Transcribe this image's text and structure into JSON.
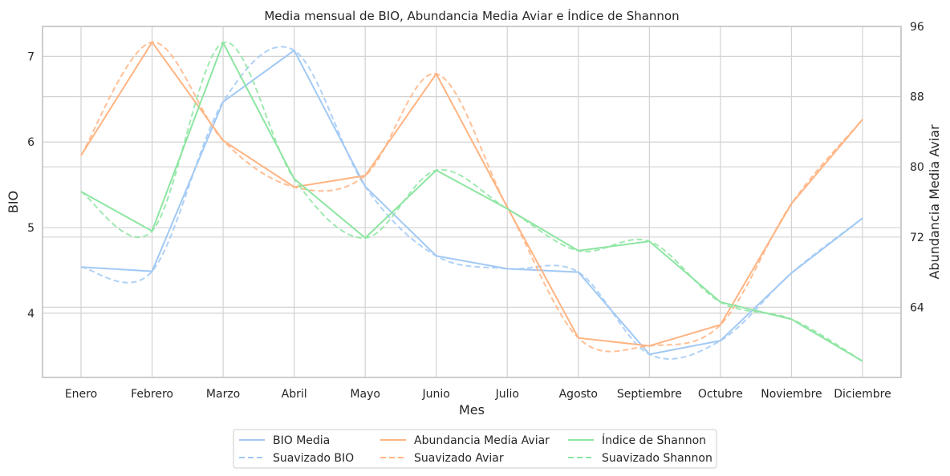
{
  "chart_data": {
    "type": "line",
    "title": "Media mensual de BIO, Abundancia Media Aviar e Índice de Shannon",
    "xlabel": "Mes",
    "ylabel_left": "BIO",
    "ylabel_right": "Abundancia Media Aviar",
    "categories": [
      "Enero",
      "Febrero",
      "Marzo",
      "Abril",
      "Mayo",
      "Junio",
      "Julio",
      "Agosto",
      "Septiembre",
      "Octubre",
      "Noviembre",
      "Diciembre"
    ],
    "ylim_left": [
      3.25,
      7.35
    ],
    "yticks_left": [
      4,
      5,
      6,
      7
    ],
    "ylim_right": [
      56.0,
      96.0
    ],
    "yticks_right": [
      64,
      72,
      80,
      88,
      96
    ],
    "grid": true,
    "legend_position": "bottom-center",
    "series": [
      {
        "name": "BIO Media",
        "axis": "left",
        "style": "solid",
        "color": "#a1c9f4",
        "values": [
          4.54,
          4.49,
          6.47,
          7.07,
          5.48,
          4.67,
          4.52,
          4.48,
          3.52,
          3.68,
          4.47,
          5.11
        ]
      },
      {
        "name": "Suavizado BIO",
        "axis": "left",
        "style": "dashed",
        "color": "#a1c9f4",
        "values": [
          4.54,
          4.49,
          6.47,
          7.07,
          5.48,
          4.67,
          4.52,
          4.48,
          3.52,
          3.68,
          4.47,
          5.11
        ]
      },
      {
        "name": "Abundancia Media Aviar",
        "axis": "right",
        "style": "solid",
        "color": "#ffb482",
        "values": [
          81.3,
          94.2,
          83.0,
          77.7,
          79.0,
          90.6,
          75.4,
          60.5,
          59.6,
          62.0,
          75.8,
          85.4
        ]
      },
      {
        "name": "Suavizado Aviar",
        "axis": "right",
        "style": "dashed",
        "color": "#ffb482",
        "values": [
          81.3,
          94.2,
          83.0,
          77.7,
          79.0,
          90.6,
          75.4,
          60.5,
          59.6,
          62.0,
          75.8,
          85.4
        ]
      },
      {
        "name": "Índice de Shannon",
        "axis": "left",
        "style": "solid",
        "color": "#8de5a1",
        "values": [
          5.42,
          4.96,
          7.16,
          5.57,
          4.88,
          5.67,
          5.22,
          4.73,
          4.84,
          4.13,
          3.93,
          3.44
        ]
      },
      {
        "name": "Suavizado Shannon",
        "axis": "left",
        "style": "dashed",
        "color": "#8de5a1",
        "values": [
          5.42,
          4.96,
          7.16,
          5.57,
          4.88,
          5.67,
          5.22,
          4.73,
          4.84,
          4.13,
          3.93,
          3.44
        ]
      }
    ]
  }
}
